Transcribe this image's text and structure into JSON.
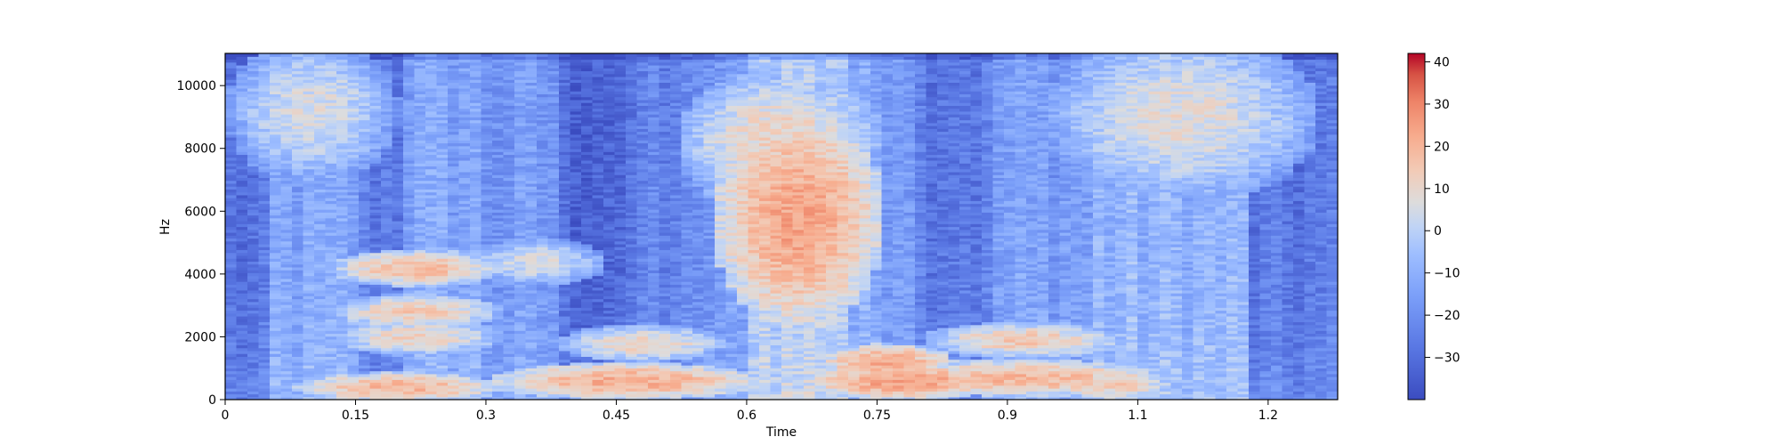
{
  "chart_data": {
    "type": "heatmap",
    "subtype": "spectrogram",
    "title": "",
    "xlabel": "Time",
    "ylabel": "Hz",
    "xlim": [
      0,
      1.28
    ],
    "ylim": [
      0,
      11025
    ],
    "x_ticks": [
      0,
      0.15,
      0.3,
      0.45,
      0.6,
      0.75,
      0.9,
      1.05,
      1.2
    ],
    "x_tick_labels": [
      "0",
      "0.15",
      "0.3",
      "0.45",
      "0.6",
      "0.75",
      "0.9",
      "1.1",
      "1.2"
    ],
    "y_ticks": [
      0,
      2000,
      4000,
      6000,
      8000,
      10000
    ],
    "y_tick_labels": [
      "0",
      "2000",
      "4000",
      "6000",
      "8000",
      "10000"
    ],
    "colormap": "coolwarm",
    "colorbar": {
      "vmin": -40,
      "vmax": 42,
      "ticks": [
        40,
        30,
        20,
        10,
        0,
        -10,
        -20,
        -30
      ],
      "tick_labels": [
        "40",
        "30",
        "20",
        "10",
        "0",
        "−10",
        "−20",
        "−30"
      ]
    },
    "bands": [
      {
        "t0": 0.0,
        "t1": 0.05,
        "base": -30
      },
      {
        "t0": 0.05,
        "t1": 0.15,
        "base": -14
      },
      {
        "t0": 0.15,
        "t1": 0.2,
        "base": -26
      },
      {
        "t0": 0.2,
        "t1": 0.3,
        "base": -14
      },
      {
        "t0": 0.3,
        "t1": 0.38,
        "base": -18
      },
      {
        "t0": 0.38,
        "t1": 0.47,
        "base": -32
      },
      {
        "t0": 0.47,
        "t1": 0.55,
        "base": -24
      },
      {
        "t0": 0.55,
        "t1": 0.6,
        "base": -18
      },
      {
        "t0": 0.6,
        "t1": 0.72,
        "base": -2
      },
      {
        "t0": 0.72,
        "t1": 0.8,
        "base": -14
      },
      {
        "t0": 0.8,
        "t1": 0.88,
        "base": -26
      },
      {
        "t0": 0.88,
        "t1": 1.0,
        "base": -16
      },
      {
        "t0": 1.0,
        "t1": 1.18,
        "base": -10
      },
      {
        "t0": 1.18,
        "t1": 1.28,
        "base": -28
      }
    ],
    "hotspots": [
      {
        "t": 0.66,
        "f": 5800,
        "dt": 0.05,
        "df": 1800,
        "value": 24
      },
      {
        "t": 0.64,
        "f": 8200,
        "dt": 0.06,
        "df": 1200,
        "value": 12
      },
      {
        "t": 0.1,
        "f": 9200,
        "dt": 0.05,
        "df": 1200,
        "value": 6
      },
      {
        "t": 1.1,
        "f": 9000,
        "dt": 0.08,
        "df": 1400,
        "value": 8
      },
      {
        "t": 0.22,
        "f": 4200,
        "dt": 0.05,
        "df": 300,
        "value": 18
      },
      {
        "t": 0.22,
        "f": 2800,
        "dt": 0.05,
        "df": 300,
        "value": 14
      },
      {
        "t": 0.22,
        "f": 2000,
        "dt": 0.05,
        "df": 300,
        "value": 12
      },
      {
        "t": 0.2,
        "f": 400,
        "dt": 0.06,
        "df": 250,
        "value": 20
      },
      {
        "t": 0.48,
        "f": 1800,
        "dt": 0.05,
        "df": 300,
        "value": 12
      },
      {
        "t": 0.46,
        "f": 600,
        "dt": 0.08,
        "df": 300,
        "value": 22
      },
      {
        "t": 0.76,
        "f": 1200,
        "dt": 0.04,
        "df": 300,
        "value": 22
      },
      {
        "t": 0.78,
        "f": 600,
        "dt": 0.06,
        "df": 300,
        "value": 24
      },
      {
        "t": 0.92,
        "f": 1900,
        "dt": 0.06,
        "df": 300,
        "value": 14
      },
      {
        "t": 0.92,
        "f": 700,
        "dt": 0.08,
        "df": 300,
        "value": 20
      },
      {
        "t": 0.36,
        "f": 4400,
        "dt": 0.04,
        "df": 400,
        "value": 6
      },
      {
        "t": 1.02,
        "f": 500,
        "dt": 0.04,
        "df": 300,
        "value": 14
      }
    ]
  }
}
